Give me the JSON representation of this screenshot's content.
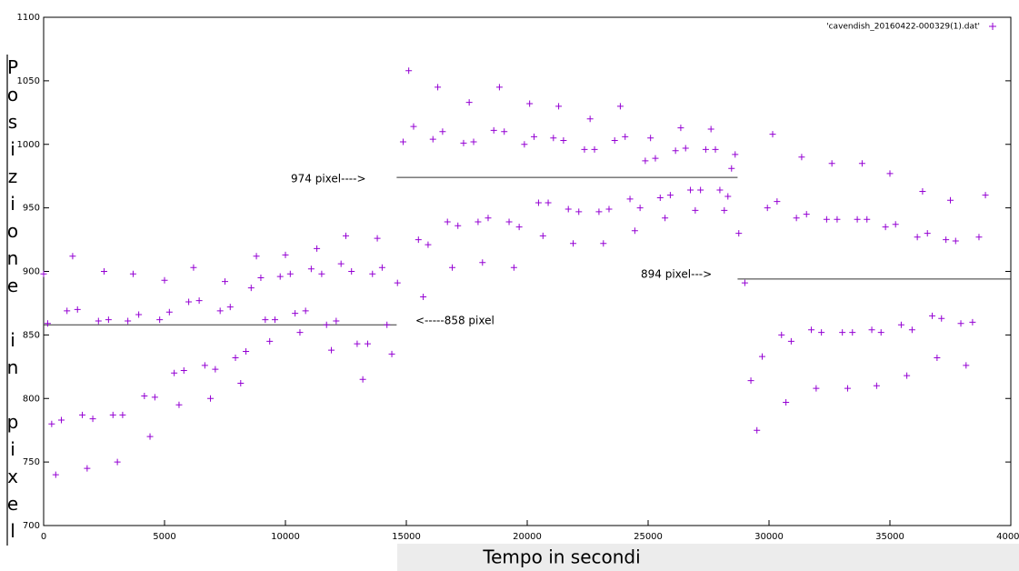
{
  "chart_data": {
    "type": "scatter",
    "xlabel": "Tempo in secondi",
    "ylabel": "Posizione in pixel",
    "xlim": [
      0,
      40000
    ],
    "ylim": [
      700,
      1100
    ],
    "xticks": [
      0,
      5000,
      10000,
      15000,
      20000,
      25000,
      30000,
      35000,
      40000
    ],
    "yticks": [
      700,
      750,
      800,
      850,
      900,
      950,
      1000,
      1050,
      1100
    ],
    "legend": "top-right",
    "series": [
      {
        "name": "'cavendish_20160422-000329(1).dat'",
        "color": "#9400d3",
        "x": [
          0,
          167,
          333,
          500,
          733,
          967,
          1200,
          1400,
          1600,
          1800,
          2033,
          2267,
          2500,
          2683,
          2867,
          3050,
          3267,
          3483,
          3700,
          3933,
          4167,
          4400,
          4600,
          4800,
          5000,
          5200,
          5400,
          5600,
          5800,
          6000,
          6200,
          6433,
          6667,
          6900,
          7100,
          7300,
          7500,
          7717,
          7933,
          8150,
          8367,
          8583,
          8800,
          8983,
          9167,
          9350,
          9567,
          9783,
          10000,
          10200,
          10400,
          10600,
          10833,
          11067,
          11300,
          11500,
          11700,
          11900,
          12100,
          12300,
          12500,
          12733,
          12967,
          13200,
          13400,
          13600,
          13800,
          14000,
          14200,
          14400,
          14633,
          14867,
          15100,
          15300,
          15500,
          15700,
          15900,
          16100,
          16300,
          16500,
          16700,
          16900,
          17133,
          17367,
          17600,
          17783,
          17967,
          18150,
          18383,
          18617,
          18850,
          19050,
          19250,
          19450,
          19667,
          19883,
          20100,
          20283,
          20467,
          20650,
          20867,
          21083,
          21300,
          21500,
          21700,
          21900,
          22133,
          22367,
          22600,
          22783,
          22967,
          23150,
          23383,
          23617,
          23850,
          24050,
          24250,
          24450,
          24667,
          24883,
          25100,
          25300,
          25500,
          25700,
          25917,
          26133,
          26350,
          26550,
          26750,
          26950,
          27167,
          27383,
          27600,
          27783,
          27967,
          28150,
          28300,
          28450,
          28600,
          28750,
          29000,
          29250,
          29500,
          29717,
          29933,
          30150,
          30333,
          30517,
          30700,
          30917,
          31133,
          31350,
          31550,
          31750,
          31950,
          32167,
          32383,
          32600,
          32817,
          33033,
          33250,
          33450,
          33650,
          33850,
          34050,
          34250,
          34450,
          34633,
          34817,
          35000,
          35233,
          35467,
          35700,
          35917,
          36133,
          36350,
          36550,
          36750,
          36950,
          37133,
          37317,
          37500,
          37717,
          37933,
          38150,
          38417,
          38683,
          38950
        ],
        "values": [
          898,
          859,
          780,
          740,
          783,
          869,
          912,
          870,
          787,
          745,
          784,
          861,
          900,
          862,
          787,
          750,
          787,
          861,
          898,
          866,
          802,
          770,
          801,
          862,
          893,
          868,
          820,
          795,
          822,
          876,
          903,
          877,
          826,
          800,
          823,
          869,
          892,
          872,
          832,
          812,
          837,
          887,
          912,
          895,
          862,
          845,
          862,
          896,
          913,
          898,
          867,
          852,
          869,
          902,
          918,
          898,
          858,
          838,
          861,
          906,
          928,
          900,
          843,
          815,
          843,
          898,
          926,
          903,
          858,
          835,
          891,
          1002,
          1058,
          1014,
          925,
          880,
          921,
          1004,
          1045,
          1010,
          939,
          903,
          936,
          1001,
          1033,
          1002,
          939,
          907,
          942,
          1011,
          1045,
          1010,
          939,
          903,
          935,
          1000,
          1032,
          1006,
          954,
          928,
          954,
          1005,
          1030,
          1003,
          949,
          922,
          947,
          996,
          1020,
          996,
          947,
          922,
          949,
          1003,
          1030,
          1006,
          957,
          932,
          950,
          987,
          1005,
          989,
          958,
          942,
          960,
          995,
          1013,
          997,
          964,
          948,
          964,
          996,
          1012,
          996,
          964,
          948,
          959,
          981,
          992,
          930,
          891,
          814,
          775,
          833,
          950,
          1008,
          955,
          850,
          797,
          845,
          942,
          990,
          945,
          854,
          808,
          852,
          941,
          985,
          941,
          852,
          808,
          852,
          941,
          985,
          941,
          854,
          810,
          852,
          935,
          977,
          937,
          858,
          818,
          854,
          927,
          963,
          930,
          865,
          832,
          863,
          925,
          956,
          924,
          859,
          826,
          860,
          927,
          960
        ]
      }
    ],
    "reference_lines": [
      {
        "value": 858,
        "xlim": [
          0,
          14600
        ]
      },
      {
        "value": 974,
        "xlim": [
          14600,
          28700
        ]
      },
      {
        "value": 894,
        "xlim": [
          28700,
          40000
        ]
      }
    ],
    "annotations": [
      "974 pixel---->",
      "<-----858 pixel",
      "894 pixel--->"
    ]
  }
}
